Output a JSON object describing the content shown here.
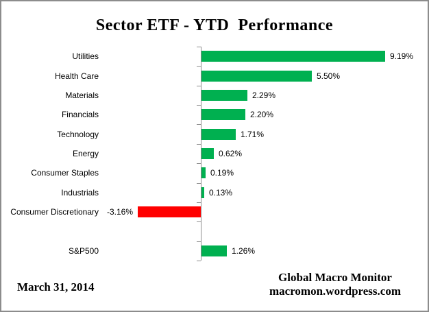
{
  "chart": {
    "title": "Sector ETF - YTD  Performance"
  },
  "chart_data": {
    "type": "bar",
    "orientation": "horizontal",
    "title": "Sector ETF - YTD  Performance",
    "xlabel": "",
    "ylabel": "",
    "grid": false,
    "legend": false,
    "value_unit": "%",
    "rows": [
      {
        "label": "Utilities",
        "value": 9.19,
        "display": "9.19%"
      },
      {
        "label": "Health Care",
        "value": 5.5,
        "display": "5.50%"
      },
      {
        "label": "Materials",
        "value": 2.29,
        "display": "2.29%"
      },
      {
        "label": "Financials",
        "value": 2.2,
        "display": "2.20%"
      },
      {
        "label": "Technology",
        "value": 1.71,
        "display": "1.71%"
      },
      {
        "label": "Energy",
        "value": 0.62,
        "display": "0.62%"
      },
      {
        "label": "Consumer Staples",
        "value": 0.19,
        "display": "0.19%"
      },
      {
        "label": "Industrials",
        "value": 0.13,
        "display": "0.13%"
      },
      {
        "label": "Consumer Discretionary",
        "value": -3.16,
        "display": "-3.16%"
      },
      {
        "label": "",
        "value": null,
        "display": ""
      },
      {
        "label": "S&P500",
        "value": 1.26,
        "display": "1.26%"
      }
    ],
    "colors": {
      "positive": "#00B050",
      "negative": "#FF0000",
      "axis": "#8C8C8C",
      "text": "#000000"
    }
  },
  "footer": {
    "date": "March 31, 2014",
    "credit_line1": "Global Macro Monitor",
    "credit_line2": "macromon.wordpress.com"
  }
}
